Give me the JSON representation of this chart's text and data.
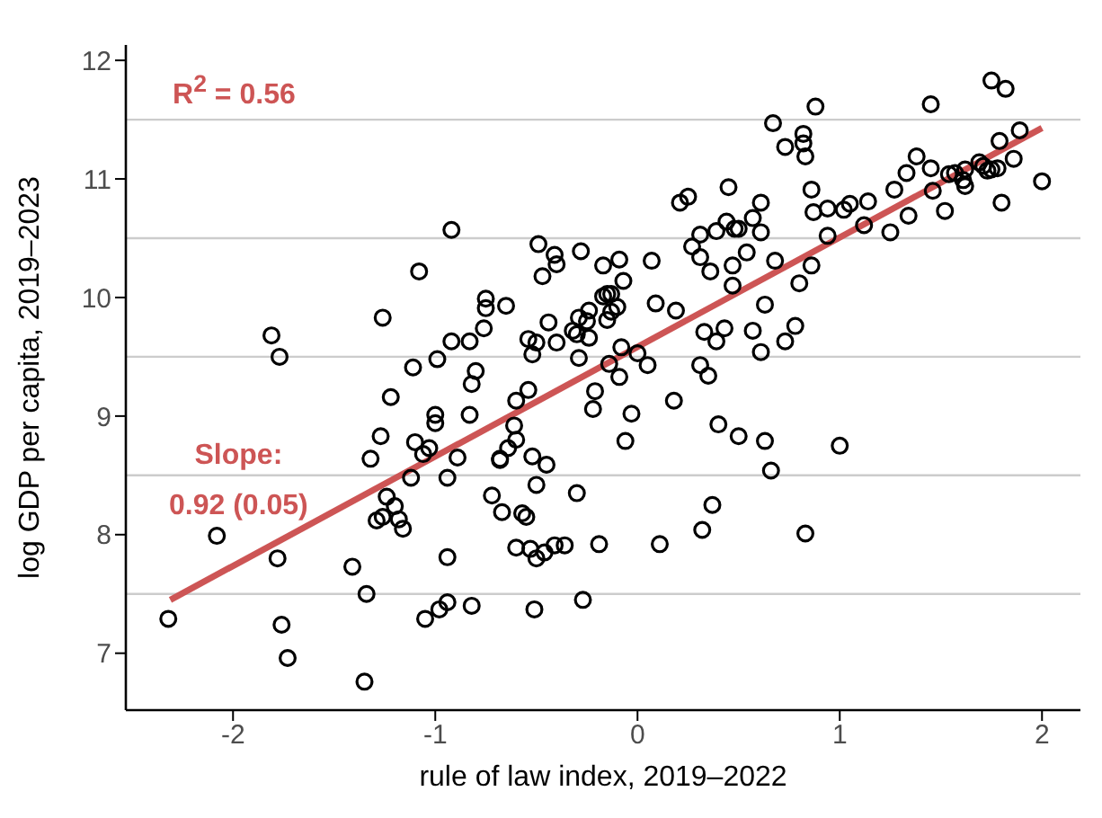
{
  "chart_data": {
    "type": "scatter",
    "xlabel": "rule of law index, 2019–2022",
    "ylabel": "log GDP per capita, 2019–2023",
    "annotations": [
      "R$^{2}$ = 0.56",
      "Slope:\n0.92 (0.05)"
    ],
    "xlim": [
      -2.53,
      2.19
    ],
    "xticks": [
      -2,
      -1,
      0,
      1,
      2
    ],
    "ylim": [
      6.52,
      12.13
    ],
    "yticks": [
      7,
      8,
      9,
      10,
      11,
      12
    ],
    "ref_lines": [
      {
        "axis": "y",
        "value": 7.5,
        "color": "#cccccc"
      },
      {
        "axis": "y",
        "value": 8.5,
        "color": "#cccccc"
      },
      {
        "axis": "y",
        "value": 9.5,
        "color": "#cccccc"
      },
      {
        "axis": "y",
        "value": 10.5,
        "color": "#cccccc"
      },
      {
        "axis": "y",
        "value": 11.5,
        "color": "#cccccc"
      }
    ],
    "series": [
      {
        "marker": "circle",
        "color": "#000000",
        "x": [
          -2.32,
          -2.08,
          -1.81,
          -1.77,
          -1.78,
          -1.76,
          -1.73,
          -1.34,
          -1.35,
          -1.41,
          -1.26,
          -1.08,
          -1.11,
          -0.99,
          -0.92,
          -0.92,
          -1.22,
          -1.0,
          -1.0,
          -1.27,
          -1.32,
          -1.1,
          -1.03,
          -1.06,
          -1.12,
          -1.24,
          -1.2,
          -1.26,
          -1.29,
          -1.18,
          -1.16,
          -0.94,
          -0.94,
          -0.98,
          -1.05,
          -0.94,
          -0.83,
          -0.8,
          -0.76,
          -0.75,
          -0.75,
          -0.65,
          -0.54,
          -0.5,
          -0.52,
          -0.4,
          -0.44,
          -0.49,
          -0.41,
          -0.4,
          -0.47,
          -0.28,
          -0.32,
          -0.3,
          -0.29,
          -0.25,
          -0.24,
          -0.24,
          -0.29,
          -0.17,
          -0.09,
          -0.07,
          -0.17,
          -0.15,
          -0.13,
          -0.1,
          -0.13,
          -0.15,
          -0.08,
          -0.14,
          0.0,
          0.05,
          -0.09,
          0.07,
          0.09,
          0.19,
          0.21,
          0.25,
          0.45,
          0.31,
          0.27,
          0.31,
          0.36,
          0.39,
          0.44,
          0.48,
          0.5,
          0.57,
          0.61,
          0.61,
          0.54,
          0.47,
          0.47,
          0.33,
          0.39,
          0.43,
          0.63,
          0.57,
          0.61,
          0.31,
          0.35,
          0.67,
          0.88,
          0.73,
          0.82,
          0.82,
          0.83,
          0.86,
          0.87,
          0.94,
          1.02,
          1.05,
          1.14,
          0.94,
          1.12,
          1.25,
          1.34,
          1.27,
          1.33,
          1.38,
          1.45,
          1.46,
          1.52,
          1.45,
          1.54,
          1.57,
          1.62,
          1.61,
          1.62,
          1.69,
          1.71,
          1.73,
          1.75,
          1.78,
          1.79,
          1.86,
          1.89,
          1.8,
          2.0,
          1.75,
          1.82,
          0.68,
          0.86,
          0.8,
          0.78,
          0.73,
          -0.82,
          -0.83,
          -0.89,
          -0.6,
          -0.54,
          -0.61,
          -0.6,
          -0.64,
          -0.68,
          -0.68,
          -0.52,
          -0.45,
          -0.5,
          -0.72,
          -0.67,
          -0.57,
          -0.55,
          -0.3,
          -0.6,
          -0.53,
          -0.5,
          -0.46,
          -0.41,
          -0.36,
          -0.19,
          0.11,
          0.32,
          0.37,
          -0.82,
          -0.51,
          -0.27,
          -0.21,
          -0.22,
          -0.03,
          -0.06,
          0.18,
          0.4,
          0.5,
          0.63,
          0.66,
          1.0,
          0.83
        ],
        "values": [
          7.29,
          7.99,
          9.68,
          9.5,
          7.8,
          7.24,
          6.96,
          7.5,
          6.76,
          7.73,
          9.83,
          10.22,
          9.41,
          9.48,
          10.57,
          9.63,
          9.16,
          9.01,
          8.94,
          8.83,
          8.64,
          8.78,
          8.73,
          8.68,
          8.48,
          8.32,
          8.24,
          8.15,
          8.12,
          8.13,
          8.05,
          8.48,
          7.81,
          7.37,
          7.29,
          7.43,
          9.63,
          9.38,
          9.74,
          9.99,
          9.91,
          9.93,
          9.65,
          9.62,
          9.52,
          9.62,
          9.79,
          10.45,
          10.36,
          10.28,
          10.18,
          10.39,
          9.72,
          9.69,
          9.83,
          9.8,
          9.89,
          9.66,
          9.49,
          10.27,
          10.32,
          10.14,
          10.01,
          10.03,
          10.03,
          9.92,
          9.88,
          9.81,
          9.58,
          9.44,
          9.53,
          9.43,
          9.33,
          10.31,
          9.95,
          9.89,
          10.8,
          10.85,
          10.93,
          10.53,
          10.43,
          10.34,
          10.22,
          10.56,
          10.64,
          10.58,
          10.58,
          10.67,
          10.8,
          10.55,
          10.38,
          10.27,
          10.1,
          9.71,
          9.63,
          9.74,
          9.94,
          9.72,
          9.54,
          9.43,
          9.34,
          11.47,
          11.61,
          11.27,
          11.38,
          11.3,
          11.19,
          10.91,
          10.72,
          10.75,
          10.74,
          10.79,
          10.81,
          10.52,
          10.61,
          10.55,
          10.69,
          10.91,
          11.05,
          11.19,
          11.09,
          10.9,
          10.73,
          11.63,
          11.04,
          11.05,
          11.08,
          10.99,
          10.94,
          11.14,
          11.11,
          11.07,
          11.08,
          11.09,
          11.32,
          11.17,
          11.41,
          10.8,
          10.98,
          11.83,
          11.76,
          10.31,
          10.27,
          10.12,
          9.76,
          9.63,
          9.27,
          9.01,
          8.65,
          9.13,
          9.22,
          8.92,
          8.8,
          8.73,
          8.64,
          8.63,
          8.66,
          8.59,
          8.42,
          8.33,
          8.19,
          8.18,
          8.15,
          8.35,
          7.89,
          7.88,
          7.8,
          7.85,
          7.91,
          7.91,
          7.92,
          7.92,
          8.04,
          8.25,
          7.4,
          7.37,
          7.45,
          9.21,
          9.06,
          9.02,
          8.79,
          9.13,
          8.93,
          8.83,
          8.79,
          8.54,
          8.75,
          8.01
        ]
      },
      {
        "type": "line",
        "color": "#cd5555",
        "x": [
          -2.31,
          2.0
        ],
        "values": [
          7.45,
          11.43
        ]
      }
    ]
  }
}
